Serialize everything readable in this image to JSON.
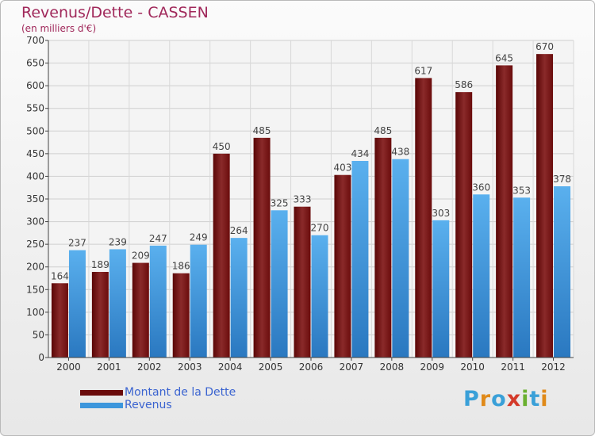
{
  "chart_data": {
    "type": "bar",
    "title": "Revenus/Dette - CASSEN",
    "subtitle": "(en milliers d'€)",
    "categories": [
      "2000",
      "2001",
      "2002",
      "2003",
      "2004",
      "2005",
      "2006",
      "2007",
      "2008",
      "2009",
      "2010",
      "2011",
      "2012"
    ],
    "series": [
      {
        "name": "Montant de la Dette",
        "color": "#6b0c0c",
        "values": [
          164,
          189,
          209,
          186,
          450,
          485,
          333,
          403,
          485,
          617,
          586,
          645,
          670
        ]
      },
      {
        "name": "Revenus",
        "color": "#3c96dc",
        "values": [
          237,
          239,
          247,
          249,
          264,
          325,
          270,
          434,
          438,
          303,
          360,
          353,
          378
        ]
      }
    ],
    "ylim": [
      0,
      700
    ],
    "yticks": [
      0,
      50,
      100,
      150,
      200,
      250,
      300,
      350,
      400,
      450,
      500,
      550,
      600,
      650,
      700
    ],
    "grid": true,
    "legend": "bottom-left"
  },
  "logo": {
    "text": "Proxiti",
    "colors": [
      "#3aa0d8",
      "#e08a1a",
      "#3aa0d8",
      "#d43a2a",
      "#6ab030",
      "#3aa0d8",
      "#e08a1a"
    ]
  }
}
